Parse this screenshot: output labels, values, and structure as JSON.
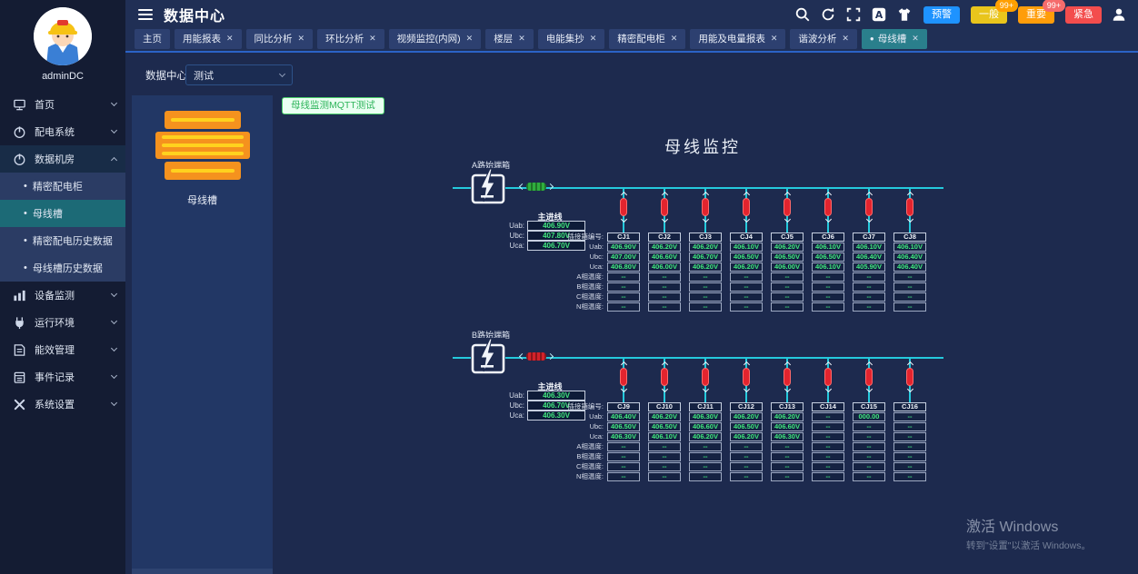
{
  "sidebar": {
    "user": "adminDC",
    "items": [
      {
        "label": "首页",
        "icon": "home-icon",
        "chevron": "down"
      },
      {
        "label": "配电系统",
        "icon": "power-icon",
        "chevron": "down"
      },
      {
        "label": "数据机房",
        "icon": "power-icon",
        "chevron": "up",
        "expanded": true,
        "children": [
          {
            "label": "精密配电柜"
          },
          {
            "label": "母线槽",
            "active": true
          },
          {
            "label": "精密配电历史数据"
          },
          {
            "label": "母线槽历史数据"
          }
        ]
      },
      {
        "label": "设备监测",
        "icon": "chart-icon",
        "chevron": "down"
      },
      {
        "label": "运行环境",
        "icon": "environment-icon",
        "chevron": "down"
      },
      {
        "label": "能效管理",
        "icon": "energy-icon",
        "chevron": "down"
      },
      {
        "label": "事件记录",
        "icon": "event-icon",
        "chevron": "down"
      },
      {
        "label": "系统设置",
        "icon": "settings-icon",
        "chevron": "down"
      }
    ]
  },
  "header": {
    "title": "数据中心",
    "icons": [
      "search-icon",
      "refresh-icon",
      "fullscreen-icon",
      "translate-icon",
      "theme-icon"
    ],
    "alarms": [
      {
        "label": "预警",
        "color": "#1e93ff"
      },
      {
        "label": "一般",
        "color": "#e9c51c",
        "badge": "99+",
        "badge_color": "#ff9f00"
      },
      {
        "label": "重要",
        "color": "#ff9d0a",
        "badge": "99+",
        "badge_color": "#f56c6c"
      },
      {
        "label": "紧急",
        "color": "#f34d4d"
      }
    ]
  },
  "tabs": [
    {
      "label": "主页",
      "closable": false
    },
    {
      "label": "用能报表",
      "closable": true
    },
    {
      "label": "同比分析",
      "closable": true
    },
    {
      "label": "环比分析",
      "closable": true
    },
    {
      "label": "视频监控(内网)",
      "closable": true
    },
    {
      "label": "楼层",
      "closable": true
    },
    {
      "label": "电能集抄",
      "closable": true
    },
    {
      "label": "精密配电柜",
      "closable": true
    },
    {
      "label": "用能及电量报表",
      "closable": true
    },
    {
      "label": "谐波分析",
      "closable": true
    },
    {
      "label": "母线槽",
      "closable": true,
      "active": true
    }
  ],
  "toolbar": {
    "label": "数据中心",
    "select_value": "测试",
    "mqtt_label": "母线监测MQTT测试"
  },
  "device_panel": {
    "label": "母线槽"
  },
  "monitor": {
    "title": "母线监控",
    "row_labels": [
      "插接箱编号:",
      "Uab:",
      "Ubc:",
      "Uca:",
      "A相温度:",
      "B相温度:",
      "C相温度:",
      "N相温度:"
    ],
    "incoming_labels": [
      "Uab:",
      "Ubc:",
      "Uca:"
    ],
    "colors": {
      "bus_cyan": "#25c9dc",
      "value_green": "#41e87e",
      "fuse_red": "#e3242e"
    },
    "sections": [
      {
        "name": "A路始端箱",
        "incoming_title": "主进线",
        "incoming_values": [
          "406.90V",
          "407.80V",
          "406.70V"
        ],
        "switch_color": "#2fae3e",
        "boxes": [
          {
            "id": "CJ1",
            "values": [
              "406.90V",
              "407.00V",
              "406.80V",
              "--",
              "--",
              "--",
              "--"
            ]
          },
          {
            "id": "CJ2",
            "values": [
              "406.20V",
              "406.60V",
              "406.00V",
              "--",
              "--",
              "--",
              "--"
            ]
          },
          {
            "id": "CJ3",
            "values": [
              "406.20V",
              "406.70V",
              "406.20V",
              "--",
              "--",
              "--",
              "--"
            ]
          },
          {
            "id": "CJ4",
            "values": [
              "406.10V",
              "406.50V",
              "406.20V",
              "--",
              "--",
              "--",
              "--"
            ]
          },
          {
            "id": "CJ5",
            "values": [
              "406.20V",
              "406.50V",
              "406.00V",
              "--",
              "--",
              "--",
              "--"
            ]
          },
          {
            "id": "CJ6",
            "values": [
              "406.10V",
              "406.50V",
              "406.10V",
              "--",
              "--",
              "--",
              "--"
            ]
          },
          {
            "id": "CJ7",
            "values": [
              "406.10V",
              "406.40V",
              "405.90V",
              "--",
              "--",
              "--",
              "--"
            ]
          },
          {
            "id": "CJ8",
            "values": [
              "406.10V",
              "406.40V",
              "406.40V",
              "--",
              "--",
              "--",
              "--"
            ]
          }
        ]
      },
      {
        "name": "B路始端箱",
        "incoming_title": "主进线",
        "incoming_values": [
          "406.30V",
          "406.70V",
          "406.30V"
        ],
        "switch_color": "#d3222a",
        "boxes": [
          {
            "id": "CJ9",
            "values": [
              "406.40V",
              "406.50V",
              "406.30V",
              "--",
              "--",
              "--",
              "--"
            ]
          },
          {
            "id": "CJ10",
            "values": [
              "406.20V",
              "406.50V",
              "406.10V",
              "--",
              "--",
              "--",
              "--"
            ]
          },
          {
            "id": "CJ11",
            "values": [
              "406.30V",
              "406.60V",
              "406.20V",
              "--",
              "--",
              "--",
              "--"
            ]
          },
          {
            "id": "CJ12",
            "values": [
              "406.20V",
              "406.50V",
              "406.20V",
              "--",
              "--",
              "--",
              "--"
            ]
          },
          {
            "id": "CJ13",
            "values": [
              "406.20V",
              "406.60V",
              "406.30V",
              "--",
              "--",
              "--",
              "--"
            ]
          },
          {
            "id": "CJ14",
            "values": [
              "--",
              "--",
              "--",
              "--",
              "--",
              "--",
              "--"
            ]
          },
          {
            "id": "CJ15",
            "values": [
              "000.00",
              "--",
              "--",
              "--",
              "--",
              "--",
              "--"
            ]
          },
          {
            "id": "CJ16",
            "values": [
              "--",
              "--",
              "--",
              "--",
              "--",
              "--",
              "--"
            ]
          }
        ]
      }
    ]
  },
  "watermark": {
    "line1": "激活 Windows",
    "line2": "转到\"设置\"以激活 Windows。"
  }
}
